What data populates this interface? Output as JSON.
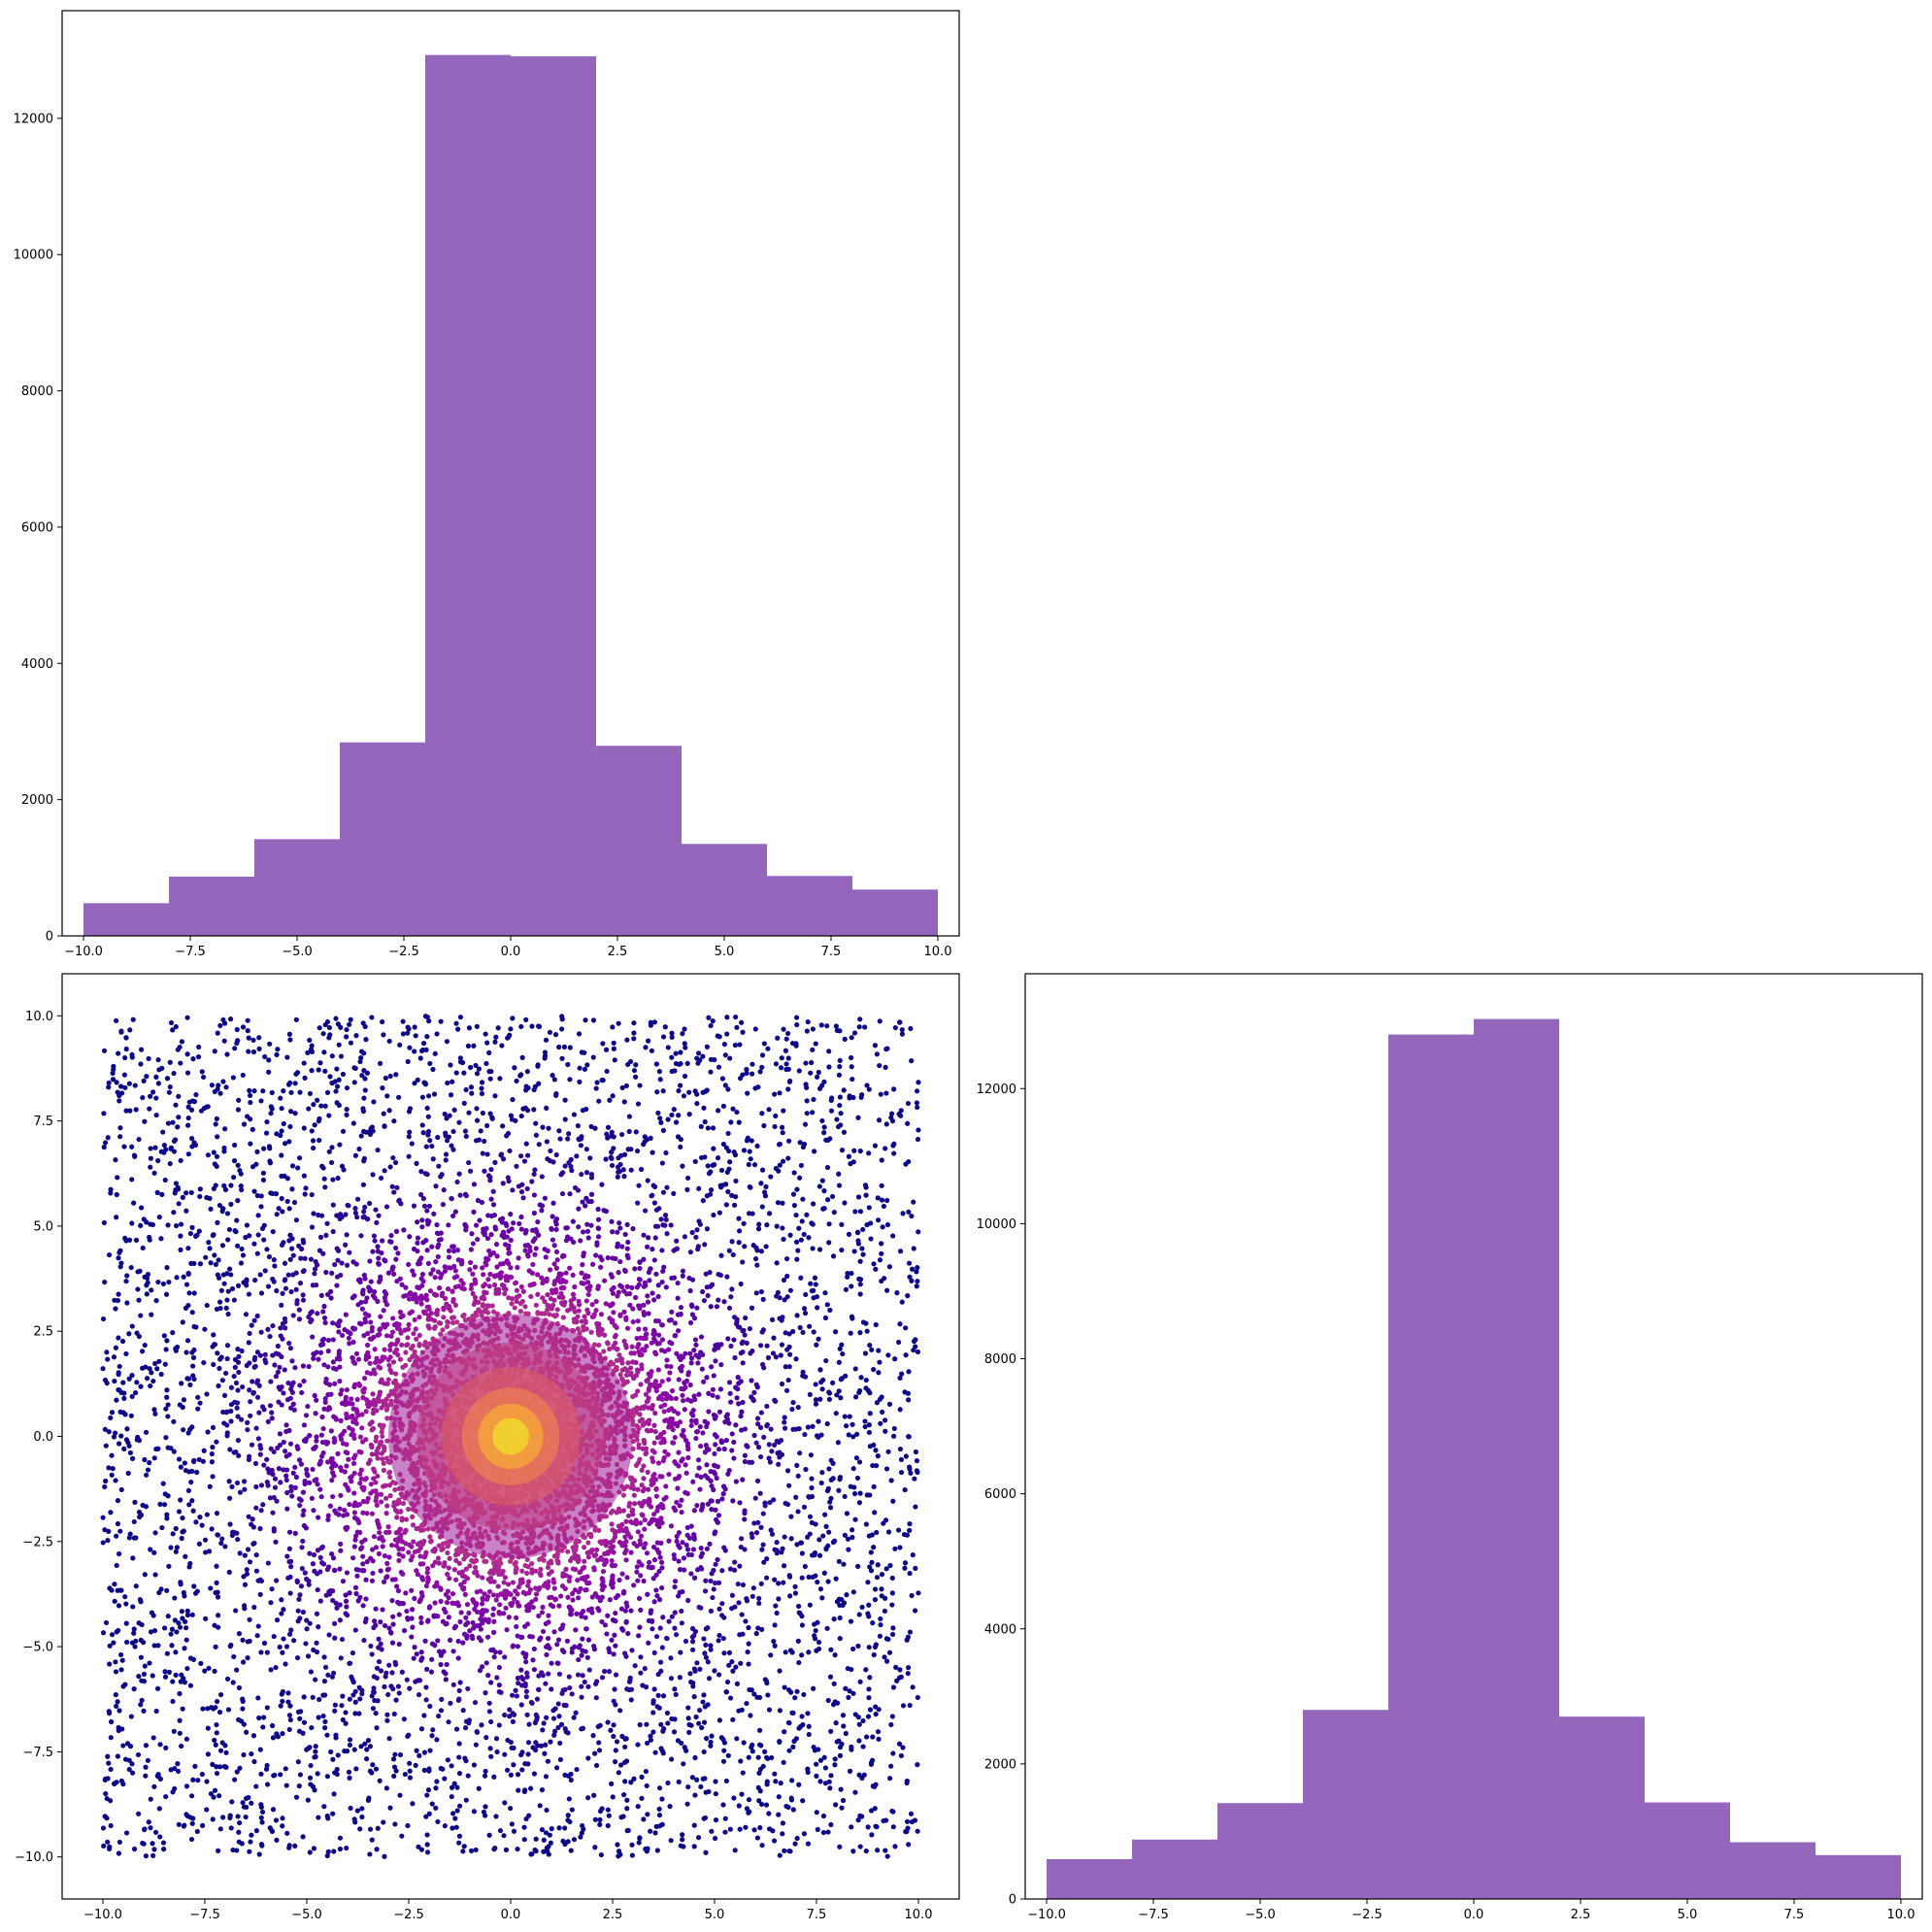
{
  "colors": {
    "bar": "#9467bd",
    "axes": "#000000",
    "background": "#ffffff",
    "scatter_colormap": [
      "#0d0887",
      "#5402a3",
      "#8b0aa5",
      "#b83289",
      "#db5c68",
      "#f48849",
      "#febd2a",
      "#f0f921"
    ]
  },
  "chart_data": [
    {
      "type": "bar",
      "subtype": "histogram",
      "position": "top-left",
      "bin_edges": [
        -10,
        -8,
        -6,
        -4,
        -2,
        0,
        2,
        4,
        6,
        8,
        10
      ],
      "values": [
        480,
        870,
        1420,
        2840,
        12930,
        12910,
        2790,
        1350,
        880,
        680
      ],
      "xlim": [
        -10.5,
        10.5
      ],
      "ylim": [
        0,
        13580
      ],
      "xticks": [
        -10,
        -7.5,
        -5,
        -2.5,
        0,
        2.5,
        5,
        7.5,
        10
      ],
      "xtick_labels": [
        "−10.0",
        "−7.5",
        "−5.0",
        "−2.5",
        "0.0",
        "2.5",
        "5.0",
        "7.5",
        "10.0"
      ],
      "yticks": [
        0,
        2000,
        4000,
        6000,
        8000,
        10000,
        12000
      ],
      "ytick_labels": [
        "0",
        "2000",
        "4000",
        "6000",
        "8000",
        "10000",
        "12000"
      ],
      "xlabel": "",
      "ylabel": "",
      "title": "",
      "grid": false
    },
    {
      "type": "scatter",
      "position": "bottom-left",
      "description_of_points": "~10000 points uniformly spread over the square, density increasing toward center (0,0); colored by density (plasma colormap)",
      "x_range": [
        -10,
        10
      ],
      "y_range": [
        -10,
        10
      ],
      "center": [
        0,
        0
      ],
      "xlim": [
        -11,
        11
      ],
      "ylim": [
        -11,
        11
      ],
      "xticks": [
        -10,
        -7.5,
        -5,
        -2.5,
        0,
        2.5,
        5,
        7.5,
        10
      ],
      "xtick_labels": [
        "−10.0",
        "−7.5",
        "−5.0",
        "−2.5",
        "0.0",
        "2.5",
        "5.0",
        "7.5",
        "10.0"
      ],
      "yticks": [
        -10,
        -7.5,
        -5,
        -2.5,
        0,
        2.5,
        5,
        7.5,
        10
      ],
      "ytick_labels": [
        "−10.0",
        "−7.5",
        "−5.0",
        "−2.5",
        "0.0",
        "2.5",
        "5.0",
        "7.5",
        "10.0"
      ],
      "xlabel": "",
      "ylabel": "",
      "title": "",
      "grid": false
    },
    {
      "type": "bar",
      "subtype": "histogram",
      "position": "bottom-right",
      "bin_edges": [
        -10,
        -8,
        -6,
        -4,
        -2,
        0,
        2,
        4,
        6,
        8,
        10
      ],
      "values": [
        590,
        880,
        1420,
        2800,
        12800,
        13030,
        2700,
        1430,
        840,
        650
      ],
      "xlim": [
        -10.5,
        10.5
      ],
      "ylim": [
        0,
        13700
      ],
      "xticks": [
        -10,
        -7.5,
        -5,
        -2.5,
        0,
        2.5,
        5,
        7.5,
        10
      ],
      "xtick_labels": [
        "−10.0",
        "−7.5",
        "−5.0",
        "−2.5",
        "0.0",
        "2.5",
        "5.0",
        "7.5",
        "10.0"
      ],
      "yticks": [
        0,
        2000,
        4000,
        6000,
        8000,
        10000,
        12000
      ],
      "ytick_labels": [
        "0",
        "2000",
        "4000",
        "6000",
        "8000",
        "10000",
        "12000"
      ],
      "xlabel": "",
      "ylabel": "",
      "title": "",
      "grid": false
    }
  ]
}
